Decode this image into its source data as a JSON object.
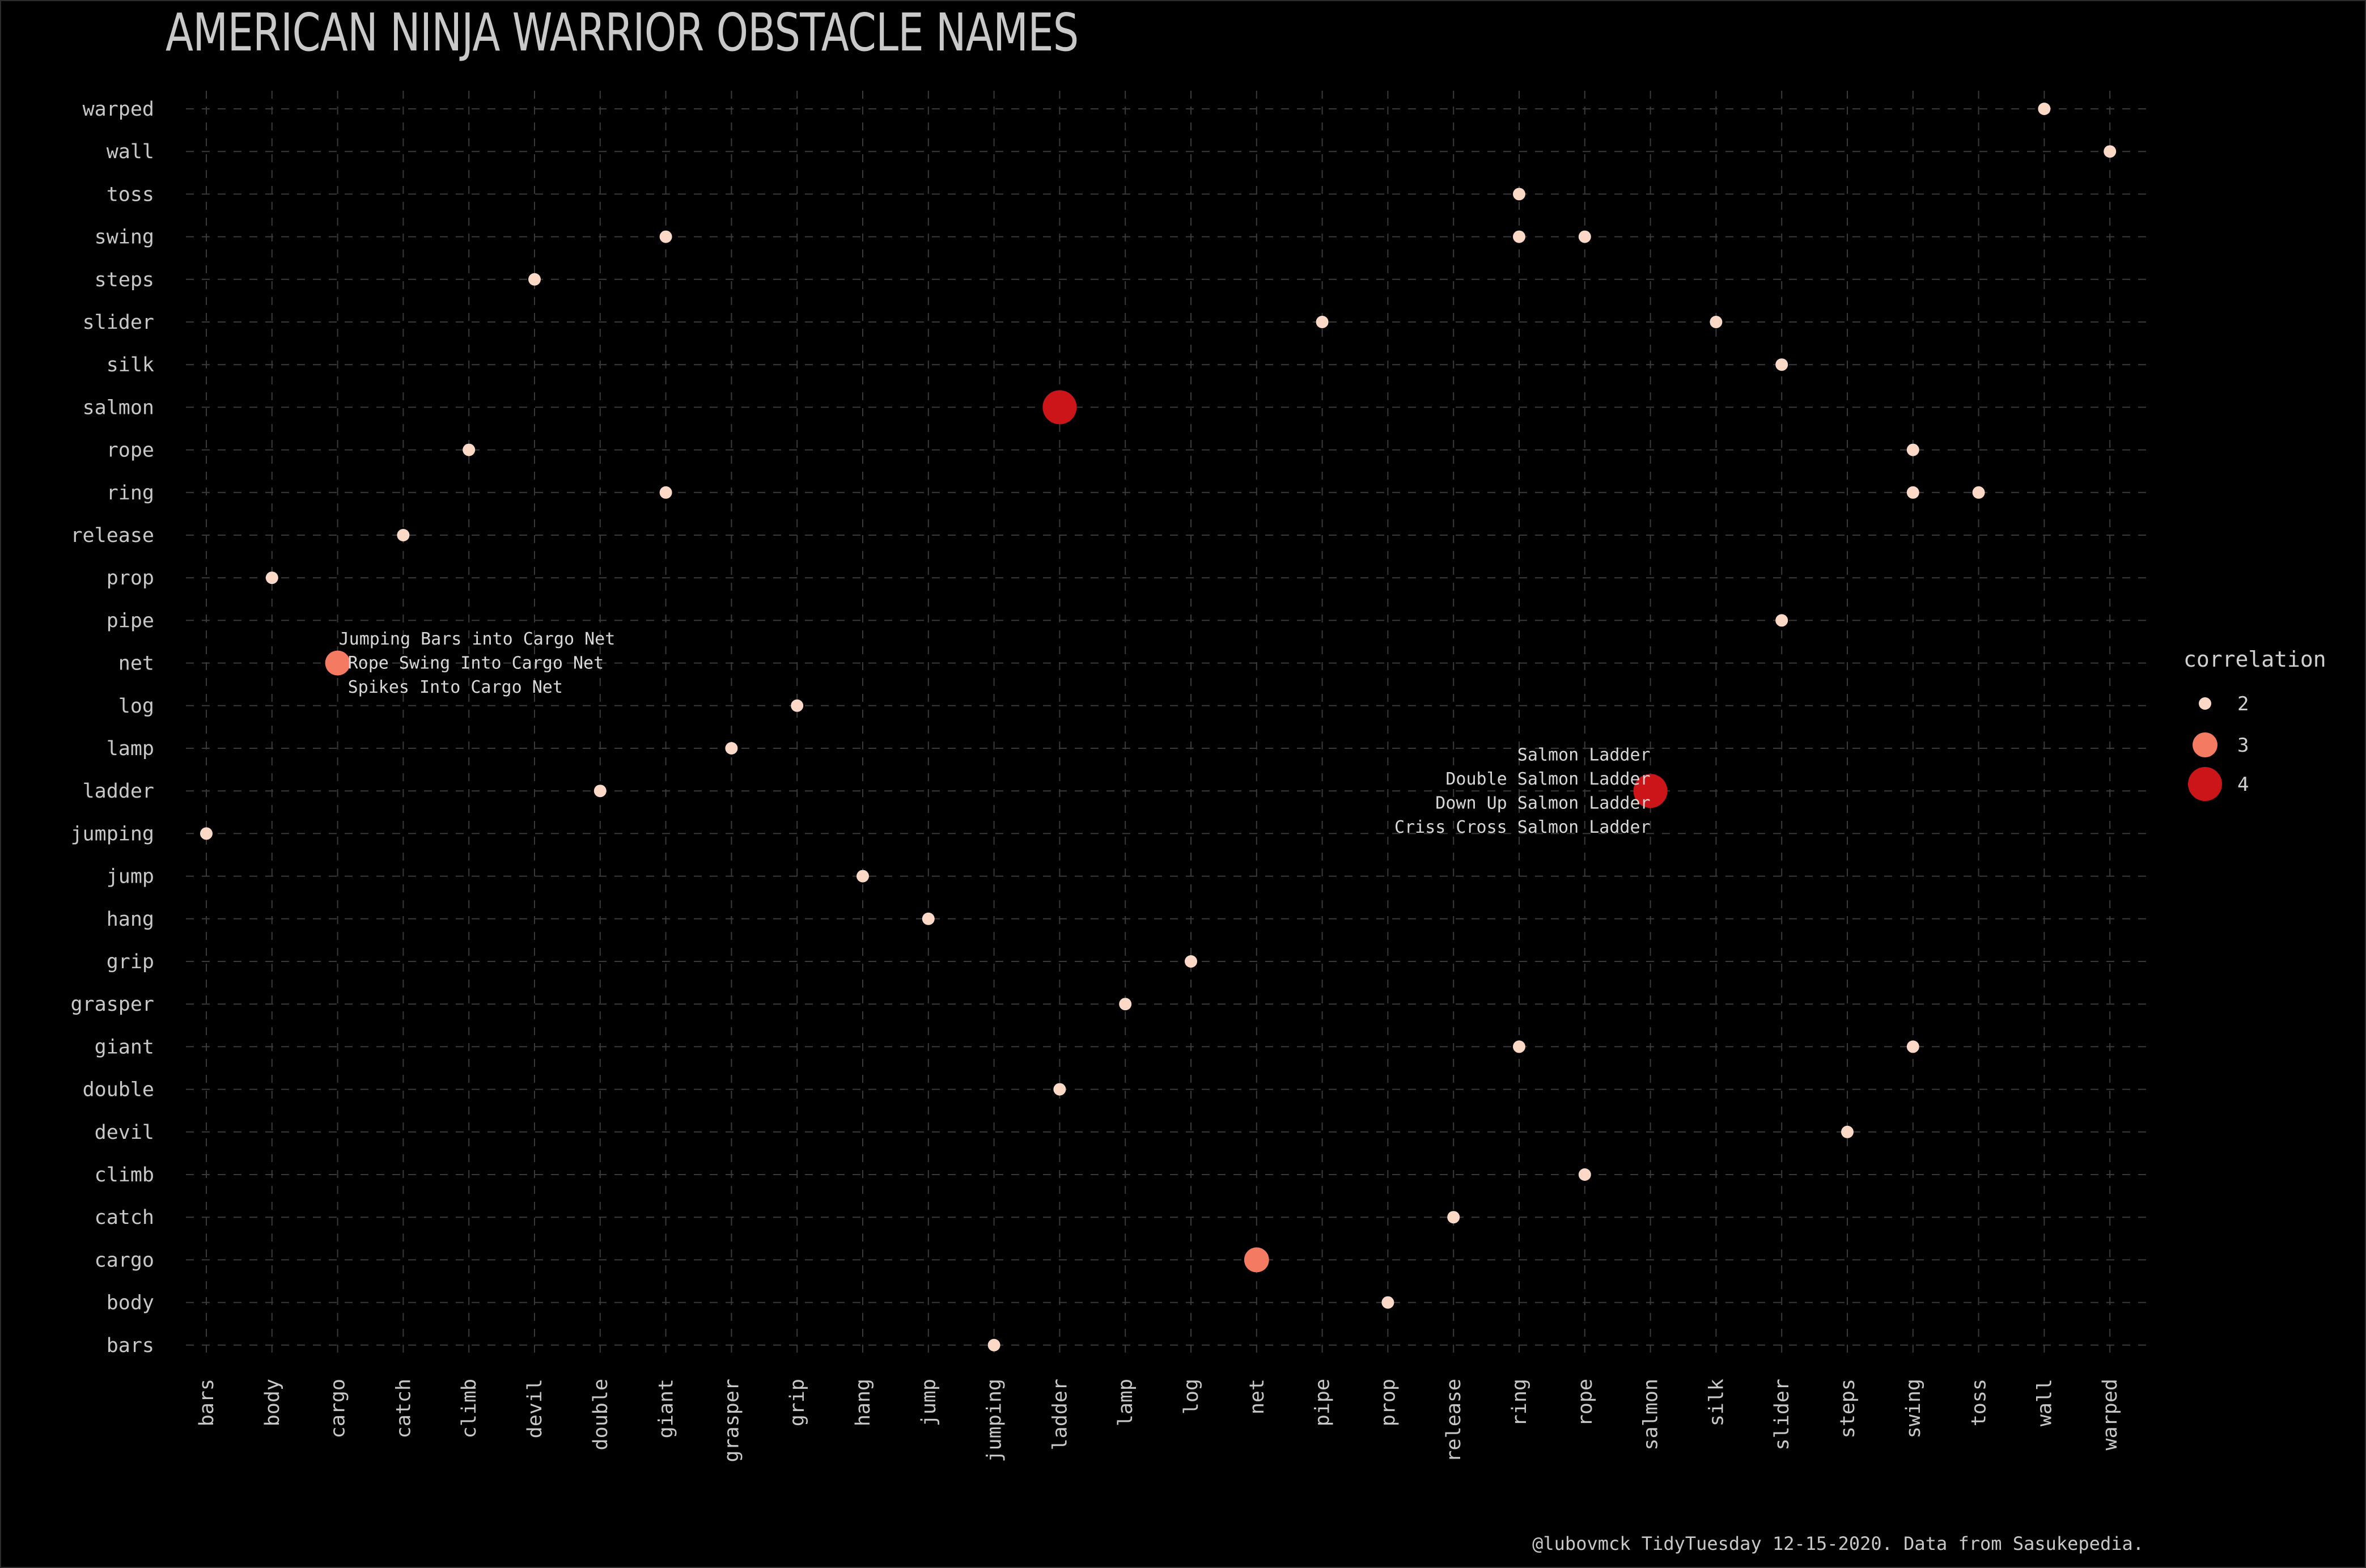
{
  "title": "AMERICAN NINJA WARRIOR OBSTACLE NAMES",
  "caption": "@lubovmck TidyTuesday 12-15-2020. Data from Sasukepedia.",
  "colors": {
    "background": "#000000",
    "grid": "#3a3a3a",
    "text": "#c8c8c8",
    "corr2": "#fcd9c6",
    "corr3": "#f57a62",
    "corr4": "#cc1519"
  },
  "chart_data": {
    "type": "scatter",
    "title": "AMERICAN NINJA WARRIOR OBSTACLE NAMES",
    "xlabel": "",
    "ylabel": "",
    "categories": [
      "bars",
      "body",
      "cargo",
      "catch",
      "climb",
      "devil",
      "double",
      "giant",
      "grasper",
      "grip",
      "hang",
      "jump",
      "jumping",
      "ladder",
      "lamp",
      "log",
      "net",
      "pipe",
      "prop",
      "release",
      "ring",
      "rope",
      "salmon",
      "silk",
      "slider",
      "steps",
      "swing",
      "toss",
      "wall",
      "warped"
    ],
    "grid": true,
    "legend": {
      "title": "correlation",
      "position": "right",
      "entries": [
        2,
        3,
        4
      ]
    },
    "points": [
      {
        "x": "wall",
        "y": "warped",
        "correlation": 2
      },
      {
        "x": "warped",
        "y": "wall",
        "correlation": 2
      },
      {
        "x": "ring",
        "y": "toss",
        "correlation": 2
      },
      {
        "x": "giant",
        "y": "swing",
        "correlation": 2
      },
      {
        "x": "ring",
        "y": "swing",
        "correlation": 2
      },
      {
        "x": "rope",
        "y": "swing",
        "correlation": 2
      },
      {
        "x": "devil",
        "y": "steps",
        "correlation": 2
      },
      {
        "x": "pipe",
        "y": "slider",
        "correlation": 2
      },
      {
        "x": "silk",
        "y": "slider",
        "correlation": 2
      },
      {
        "x": "slider",
        "y": "silk",
        "correlation": 2
      },
      {
        "x": "ladder",
        "y": "salmon",
        "correlation": 4
      },
      {
        "x": "climb",
        "y": "rope",
        "correlation": 2
      },
      {
        "x": "swing",
        "y": "rope",
        "correlation": 2
      },
      {
        "x": "giant",
        "y": "ring",
        "correlation": 2
      },
      {
        "x": "swing",
        "y": "ring",
        "correlation": 2
      },
      {
        "x": "toss",
        "y": "ring",
        "correlation": 2
      },
      {
        "x": "catch",
        "y": "release",
        "correlation": 2
      },
      {
        "x": "body",
        "y": "prop",
        "correlation": 2
      },
      {
        "x": "slider",
        "y": "pipe",
        "correlation": 2
      },
      {
        "x": "cargo",
        "y": "net",
        "correlation": 3
      },
      {
        "x": "grip",
        "y": "log",
        "correlation": 2
      },
      {
        "x": "grasper",
        "y": "lamp",
        "correlation": 2
      },
      {
        "x": "double",
        "y": "ladder",
        "correlation": 2
      },
      {
        "x": "salmon",
        "y": "ladder",
        "correlation": 4
      },
      {
        "x": "bars",
        "y": "jumping",
        "correlation": 2
      },
      {
        "x": "hang",
        "y": "jump",
        "correlation": 2
      },
      {
        "x": "jump",
        "y": "hang",
        "correlation": 2
      },
      {
        "x": "log",
        "y": "grip",
        "correlation": 2
      },
      {
        "x": "lamp",
        "y": "grasper",
        "correlation": 2
      },
      {
        "x": "ring",
        "y": "giant",
        "correlation": 2
      },
      {
        "x": "swing",
        "y": "giant",
        "correlation": 2
      },
      {
        "x": "ladder",
        "y": "double",
        "correlation": 2
      },
      {
        "x": "steps",
        "y": "devil",
        "correlation": 2
      },
      {
        "x": "rope",
        "y": "climb",
        "correlation": 2
      },
      {
        "x": "release",
        "y": "catch",
        "correlation": 2
      },
      {
        "x": "net",
        "y": "cargo",
        "correlation": 3
      },
      {
        "x": "prop",
        "y": "body",
        "correlation": 2
      },
      {
        "x": "jumping",
        "y": "bars",
        "correlation": 2
      }
    ],
    "annotations": [
      {
        "x": "cargo",
        "y": "net",
        "align": "right",
        "lines": [
          "Jumping Bars into Cargo Net",
          "Rope Swing Into Cargo Net",
          "Spikes Into Cargo Net"
        ]
      },
      {
        "x": "salmon",
        "y": "ladder",
        "align": "left",
        "lines": [
          "Salmon Ladder",
          "Double Salmon Ladder",
          "Down Up Salmon Ladder",
          "Criss Cross Salmon Ladder"
        ]
      }
    ]
  }
}
